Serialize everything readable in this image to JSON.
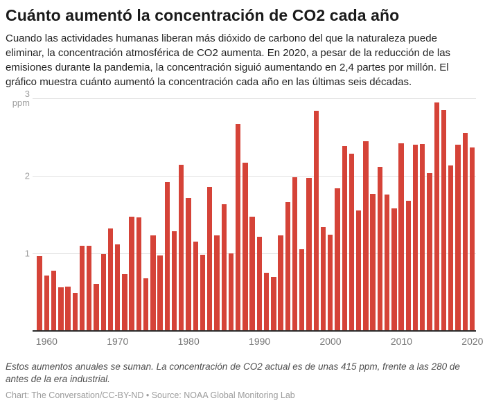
{
  "page": {
    "title": "Cuánto aumentó la concentración de CO2 cada año",
    "description": "Cuando las actividades humanas liberan más dióxido de carbono del que la naturaleza puede eliminar, la concentración atmosférica de CO2 aumenta. En 2020, a pesar de la reducción de las emisiones durante la pandemia, la concentración siguió aumentando en 2,4 partes por millón. El gráfico muestra cuánto aumentó la concentración cada año en las últimas seis décadas.",
    "note": "Estos aumentos anuales se suman. La concentración de CO2 actual es de unas 415 ppm, frente a las 280 de antes de la era industrial.",
    "credit": "Chart: The Conversation/CC-BY-ND • Source: NOAA Global Monitoring Lab"
  },
  "colors": {
    "bar": "#d2372c",
    "grid": "#e0e0e0",
    "baseline": "#2b2b2b",
    "y_tick": "#9e9e9e",
    "x_tick": "#757575",
    "title": "#1a1a1a",
    "body": "#222222",
    "note": "#4d4d4d",
    "credit": "#9b9b9b"
  },
  "chart_data": {
    "type": "bar",
    "title": "Cuánto aumentó la concentración de CO2 cada año",
    "xlabel": "",
    "ylabel": "ppm",
    "unit": "ppm",
    "ylim": [
      0,
      3
    ],
    "grid": true,
    "legend": false,
    "categories": [
      1959,
      1960,
      1961,
      1962,
      1963,
      1964,
      1965,
      1966,
      1967,
      1968,
      1969,
      1970,
      1971,
      1972,
      1973,
      1974,
      1975,
      1976,
      1977,
      1978,
      1979,
      1980,
      1981,
      1982,
      1983,
      1984,
      1985,
      1986,
      1987,
      1988,
      1989,
      1990,
      1991,
      1992,
      1993,
      1994,
      1995,
      1996,
      1997,
      1998,
      1999,
      2000,
      2001,
      2002,
      2003,
      2004,
      2005,
      2006,
      2007,
      2008,
      2009,
      2010,
      2011,
      2012,
      2013,
      2014,
      2015,
      2016,
      2017,
      2018,
      2019,
      2020
    ],
    "values": [
      0.96,
      0.71,
      0.78,
      0.56,
      0.57,
      0.49,
      1.1,
      1.1,
      0.61,
      0.99,
      1.32,
      1.12,
      0.73,
      1.47,
      1.46,
      0.68,
      1.23,
      0.97,
      1.92,
      1.29,
      2.14,
      1.71,
      1.15,
      0.98,
      1.86,
      1.23,
      1.63,
      1.0,
      2.67,
      2.17,
      1.47,
      1.21,
      0.75,
      0.7,
      1.23,
      1.66,
      1.98,
      1.05,
      1.97,
      2.84,
      1.34,
      1.24,
      1.84,
      2.38,
      2.29,
      1.55,
      2.45,
      1.77,
      2.12,
      1.76,
      1.58,
      2.42,
      1.68,
      2.4,
      2.41,
      2.04,
      2.95,
      2.85,
      2.13,
      2.4,
      2.55,
      2.37
    ],
    "y_ticks": [
      {
        "value": 3,
        "label": "3 ppm"
      },
      {
        "value": 2,
        "label": "2"
      },
      {
        "value": 1,
        "label": "1"
      }
    ],
    "x_ticks": [
      1960,
      1970,
      1980,
      1990,
      2000,
      2010,
      2020
    ]
  }
}
